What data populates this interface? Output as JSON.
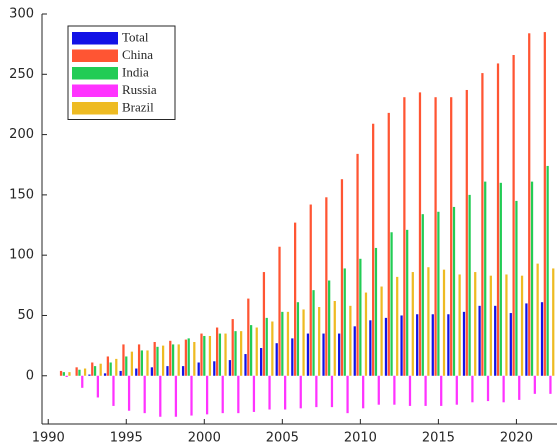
{
  "chart_data": {
    "type": "bar",
    "x": [
      1991,
      1992,
      1993,
      1994,
      1995,
      1996,
      1997,
      1998,
      1999,
      2000,
      2001,
      2002,
      2003,
      2004,
      2005,
      2006,
      2007,
      2008,
      2009,
      2010,
      2011,
      2012,
      2013,
      2014,
      2015,
      2016,
      2017,
      2018,
      2019,
      2020,
      2021,
      2022
    ],
    "series": [
      {
        "name": "Total",
        "color": "#1212e6",
        "values": [
          0,
          0,
          1,
          2,
          4,
          6,
          7,
          8,
          8,
          11,
          12,
          13,
          18,
          23,
          27,
          31,
          35,
          35,
          35,
          41,
          46,
          48,
          50,
          51,
          51,
          51,
          53,
          58,
          58,
          52,
          60,
          61
        ]
      },
      {
        "name": "China",
        "color": "#ff5533",
        "values": [
          4,
          7,
          11,
          16,
          26,
          26,
          28,
          29,
          30,
          35,
          40,
          47,
          64,
          86,
          107,
          127,
          142,
          148,
          163,
          184,
          209,
          218,
          231,
          235,
          231,
          231,
          237,
          251,
          259,
          266,
          284,
          285
        ]
      },
      {
        "name": "India",
        "color": "#22cc55",
        "values": [
          3,
          5,
          8,
          11,
          16,
          21,
          24,
          26,
          31,
          33,
          35,
          37,
          42,
          48,
          53,
          61,
          71,
          79,
          89,
          97,
          106,
          119,
          121,
          134,
          136,
          140,
          150,
          161,
          160,
          145,
          161,
          174
        ]
      },
      {
        "name": "Russia",
        "color": "#ff33ff",
        "values": [
          -1,
          -10,
          -18,
          -25,
          -29,
          -31,
          -34,
          -34,
          -33,
          -32,
          -31,
          -31,
          -30,
          -28,
          -28,
          -27,
          -26,
          -26,
          -31,
          -27,
          -24,
          -24,
          -25,
          -25,
          -25,
          -24,
          -22,
          -21,
          -22,
          -20,
          -15,
          -15
        ]
      },
      {
        "name": "Brazil",
        "color": "#eebb22",
        "values": [
          3,
          6,
          10,
          14,
          20,
          21,
          25,
          26,
          28,
          33,
          35,
          37,
          40,
          45,
          53,
          55,
          57,
          62,
          58,
          69,
          74,
          82,
          86,
          90,
          88,
          84,
          86,
          83,
          84,
          83,
          93,
          89
        ]
      }
    ],
    "xlim": [
      1989.6,
      2022.6
    ],
    "xticks": [
      1990,
      1995,
      2000,
      2005,
      2010,
      2015,
      2020
    ],
    "ylim": [
      -40,
      300
    ],
    "yticks": [
      0,
      50,
      100,
      150,
      200,
      250,
      300
    ]
  }
}
